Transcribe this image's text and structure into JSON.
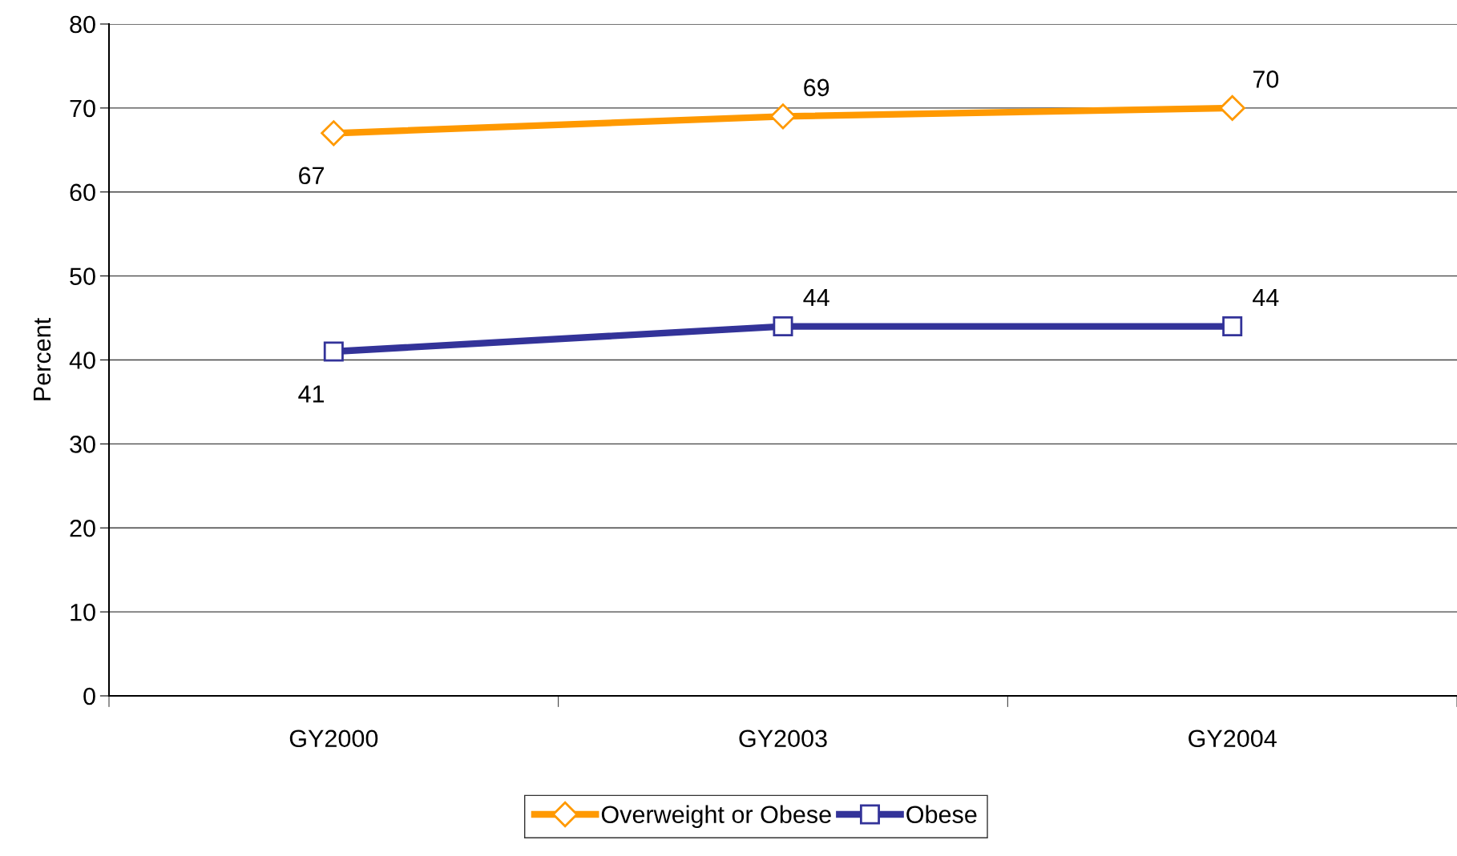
{
  "chart_data": {
    "type": "line",
    "ylabel": "Percent",
    "categories": [
      "GY2000",
      "GY2003",
      "GY2004"
    ],
    "series": [
      {
        "name": "Overweight or Obese",
        "color": "#ff9900",
        "values": [
          67,
          69,
          70
        ],
        "marker": "diamond"
      },
      {
        "name": "Obese",
        "color": "#333399",
        "values": [
          41,
          44,
          44
        ],
        "marker": "square"
      }
    ],
    "ylim": [
      0,
      80
    ],
    "yticks": [
      0,
      10,
      20,
      30,
      40,
      50,
      60,
      70,
      80
    ],
    "grid": "y",
    "legend": "bottom",
    "data_labels": true
  }
}
